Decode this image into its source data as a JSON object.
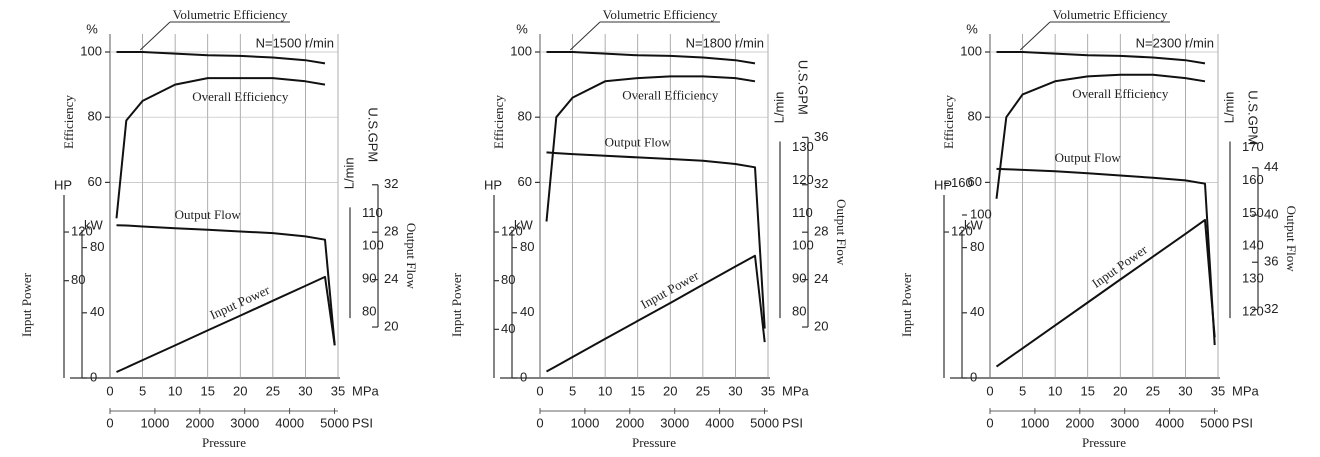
{
  "chart_data": [
    {
      "type": "line",
      "annotation": "N=1500 r/min",
      "efficiency_label": "Efficiency",
      "efficiency_unit": "%",
      "hp_label": "HP",
      "kw_label": "kW",
      "power_label": "Input Power",
      "lmin_label": "L/min",
      "gpm_label": "U.S.GPM",
      "flow_label": "Output Flow",
      "x_label": "Pressure",
      "x_unit": "MPa",
      "x2_unit": "PSI",
      "x": [
        1,
        2.5,
        5,
        10,
        15,
        20,
        25,
        30,
        33,
        34.5
      ],
      "xlim": [
        0,
        35
      ],
      "xticks": [
        0,
        5,
        10,
        15,
        20,
        25,
        30,
        35
      ],
      "x2lim": [
        0,
        5076
      ],
      "x2ticks": [
        0,
        1000,
        2000,
        3000,
        4000,
        5000
      ],
      "grid": true,
      "axes": {
        "efficiency": {
          "lim": [
            0,
            100
          ],
          "ticks": [
            60,
            80,
            100
          ]
        },
        "kw": {
          "lim": [
            0,
            200
          ],
          "ticks": [
            0,
            40,
            80
          ]
        },
        "hp": {
          "lim": [
            0,
            268
          ],
          "ticks": [
            80,
            120
          ]
        },
        "lmin": {
          "lim": [
            60,
            159
          ],
          "ticks": [
            80,
            90,
            100,
            110
          ]
        },
        "gpm": {
          "lim": [
            15.7,
            43.2
          ],
          "ticks": [
            20,
            24,
            28,
            32
          ]
        }
      },
      "series": [
        {
          "name": "Volumetric Efficiency",
          "axis": "efficiency",
          "color": "#111",
          "values": [
            100,
            100,
            100,
            99.5,
            99,
            98.8,
            98.3,
            97.5,
            96.5,
            null
          ]
        },
        {
          "name": "Overall Efficiency",
          "axis": "efficiency",
          "color": "#111",
          "values": [
            49,
            79,
            85,
            90,
            92,
            92,
            92,
            91,
            90,
            null
          ]
        },
        {
          "name": "Output Flow",
          "axis": "lmin",
          "color": "#111",
          "values": [
            106.4,
            106.3,
            106,
            105.5,
            105,
            104.5,
            104,
            103,
            102,
            70
          ]
        },
        {
          "name": "Input Power",
          "axis": "kw",
          "color": "#111",
          "values": [
            3.7,
            6.4,
            11,
            20,
            29.2,
            38.3,
            47.4,
            56.5,
            62,
            20
          ]
        }
      ]
    },
    {
      "type": "line",
      "annotation": "N=1800 r/min",
      "efficiency_label": "Efficiency",
      "efficiency_unit": "%",
      "hp_label": "HP",
      "kw_label": "kW",
      "power_label": "Input Power",
      "lmin_label": "L/min",
      "gpm_label": "U.S.GPM",
      "flow_label": "Output Flow",
      "x_label": "Pressure",
      "x_unit": "MPa",
      "x2_unit": "PSI",
      "x": [
        1,
        2.5,
        5,
        10,
        15,
        20,
        25,
        30,
        33,
        34.5
      ],
      "xlim": [
        0,
        35
      ],
      "xticks": [
        0,
        5,
        10,
        15,
        20,
        25,
        30,
        35
      ],
      "x2lim": [
        0,
        5076
      ],
      "x2ticks": [
        0,
        1000,
        2000,
        3000,
        4000,
        5000
      ],
      "grid": true,
      "axes": {
        "efficiency": {
          "lim": [
            0,
            100
          ],
          "ticks": [
            60,
            80,
            100
          ]
        },
        "kw": {
          "lim": [
            0,
            200
          ],
          "ticks": [
            0,
            40,
            80
          ]
        },
        "hp": {
          "lim": [
            0,
            268
          ],
          "ticks": [
            40,
            80,
            120
          ]
        },
        "lmin": {
          "lim": [
            60,
            159
          ],
          "ticks": [
            80,
            90,
            100,
            110,
            120,
            130
          ]
        },
        "gpm": {
          "lim": [
            15.7,
            43.2
          ],
          "ticks": [
            20,
            24,
            28,
            32,
            36
          ]
        }
      },
      "series": [
        {
          "name": "Volumetric Efficiency",
          "axis": "efficiency",
          "color": "#111",
          "values": [
            100,
            100,
            100,
            99.5,
            99,
            98.8,
            98.3,
            97.5,
            96.5,
            null
          ]
        },
        {
          "name": "Overall Efficiency",
          "axis": "efficiency",
          "color": "#111",
          "values": [
            48,
            80,
            86,
            91,
            92,
            92.5,
            92.5,
            92,
            91,
            null
          ]
        },
        {
          "name": "Output Flow",
          "axis": "lmin",
          "color": "#111",
          "values": [
            128.5,
            128.3,
            128,
            127.5,
            127,
            126.5,
            126,
            125,
            124,
            75
          ]
        },
        {
          "name": "Input Power",
          "axis": "kw",
          "color": "#111",
          "values": [
            4,
            7.3,
            12.9,
            24,
            35,
            46,
            57.3,
            68.4,
            75,
            22
          ]
        }
      ]
    },
    {
      "type": "line",
      "annotation": "N=2300 r/min",
      "efficiency_label": "Efficiency",
      "efficiency_unit": "%",
      "hp_label": "HP",
      "kw_label": "kW",
      "power_label": "Input Power",
      "lmin_label": "L/min",
      "gpm_label": "U.S.GPM",
      "flow_label": "Output Flow",
      "x_label": "Pressure",
      "x_unit": "MPa",
      "x2_unit": "PSI",
      "x": [
        1,
        2.5,
        5,
        10,
        15,
        20,
        25,
        30,
        33,
        34.5
      ],
      "xlim": [
        0,
        35
      ],
      "xticks": [
        0,
        5,
        10,
        15,
        20,
        25,
        30,
        35
      ],
      "x2lim": [
        0,
        5076
      ],
      "x2ticks": [
        0,
        1000,
        2000,
        3000,
        4000,
        5000
      ],
      "grid": true,
      "axes": {
        "efficiency": {
          "lim": [
            0,
            100
          ],
          "ticks": [
            60,
            80,
            100
          ]
        },
        "kw": {
          "lim": [
            0,
            200
          ],
          "ticks": [
            0,
            40,
            80,
            100
          ]
        },
        "hp": {
          "lim": [
            0,
            268
          ],
          "ticks": [
            120,
            160
          ]
        },
        "lmin": {
          "lim": [
            100,
            199
          ],
          "ticks": [
            120,
            130,
            140,
            150,
            160,
            170
          ]
        },
        "gpm": {
          "lim": [
            26.2,
            53.8
          ],
          "ticks": [
            32,
            36,
            40,
            44
          ]
        }
      },
      "series": [
        {
          "name": "Volumetric Efficiency",
          "axis": "efficiency",
          "color": "#111",
          "values": [
            100,
            100,
            100,
            99.5,
            99,
            98.8,
            98.3,
            97.5,
            96.5,
            null
          ]
        },
        {
          "name": "Overall Efficiency",
          "axis": "efficiency",
          "color": "#111",
          "values": [
            55,
            80,
            87,
            91,
            92.5,
            93,
            93,
            92,
            91,
            null
          ]
        },
        {
          "name": "Output Flow",
          "axis": "lmin",
          "color": "#111",
          "values": [
            163.5,
            163.4,
            163.2,
            162.8,
            162.2,
            161.5,
            160.8,
            160,
            159,
            110
          ]
        },
        {
          "name": "Input Power",
          "axis": "kw",
          "color": "#111",
          "values": [
            7,
            11.2,
            18.2,
            32.3,
            46.3,
            60.4,
            74.4,
            88.4,
            97,
            25
          ]
        }
      ]
    }
  ]
}
